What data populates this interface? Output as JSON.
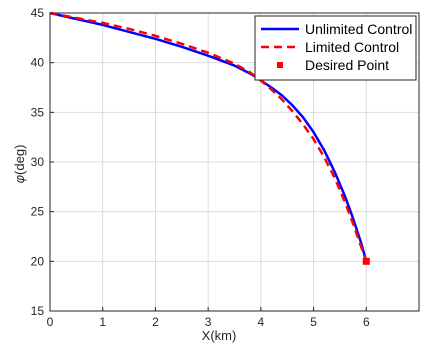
{
  "chart_data": {
    "type": "line",
    "title": "",
    "xlabel": "X(km)",
    "ylabel": "(deg)",
    "ylabel_symbol": "φ",
    "xlim": [
      0,
      7
    ],
    "ylim": [
      15,
      45
    ],
    "xticks": [
      0,
      1,
      2,
      3,
      4,
      5,
      6
    ],
    "yticks": [
      15,
      20,
      25,
      30,
      35,
      40,
      45
    ],
    "grid": true,
    "legend_position": "top-right",
    "series": [
      {
        "name": "Unlimited Control",
        "color": "#0000FF",
        "style": "solid",
        "x": [
          0,
          0.5,
          1.0,
          1.5,
          2.0,
          2.5,
          3.0,
          3.5,
          3.8,
          4.0,
          4.2,
          4.4,
          4.6,
          4.8,
          5.0,
          5.2,
          5.4,
          5.6,
          5.75,
          5.9,
          6.0
        ],
        "y": [
          45.0,
          44.4,
          43.8,
          43.1,
          42.4,
          41.6,
          40.7,
          39.7,
          38.9,
          38.2,
          37.5,
          36.7,
          35.7,
          34.5,
          33.0,
          31.2,
          29.0,
          26.5,
          24.3,
          21.9,
          20.0
        ]
      },
      {
        "name": "Limited Control",
        "color": "#FF0000",
        "style": "dashed",
        "x": [
          0,
          0.5,
          1.0,
          1.5,
          2.0,
          2.5,
          3.0,
          3.5,
          3.8,
          4.0,
          4.2,
          4.4,
          4.6,
          4.8,
          5.0,
          5.2,
          5.4,
          5.6,
          5.75,
          5.9,
          6.0
        ],
        "y": [
          45.0,
          44.5,
          44.0,
          43.4,
          42.7,
          41.9,
          41.0,
          39.9,
          39.0,
          38.2,
          37.3,
          36.3,
          35.1,
          33.8,
          32.3,
          30.5,
          28.4,
          25.9,
          23.8,
          21.5,
          20.0
        ]
      },
      {
        "name": "Desired Point",
        "color": "#FF0000",
        "style": "marker-square",
        "x": [
          6.0
        ],
        "y": [
          20.0
        ]
      }
    ]
  }
}
